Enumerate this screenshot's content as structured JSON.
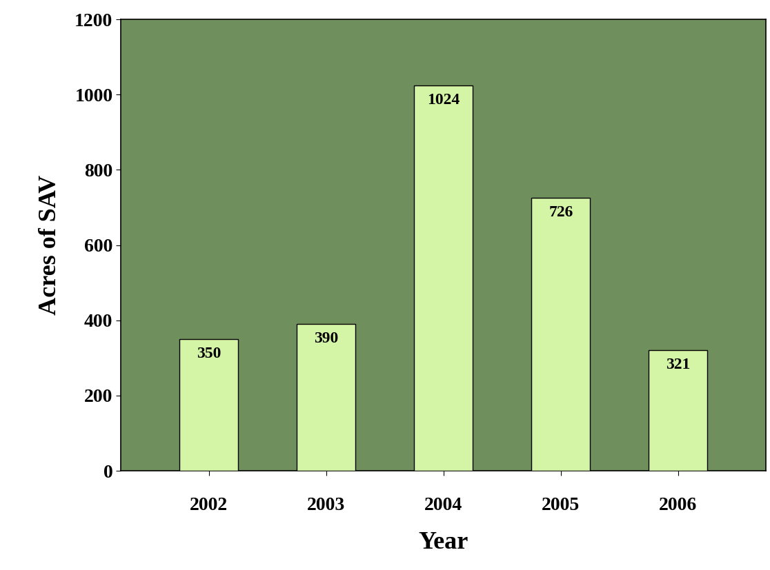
{
  "chart_data": {
    "type": "bar",
    "x_label": "Year",
    "y_label": "Acres of SAV",
    "categories": [
      "2002",
      "2003",
      "2004",
      "2005",
      "2006"
    ],
    "values": [
      350,
      390,
      1024,
      726,
      321
    ],
    "color": "#d4f5a6",
    "ylim": [
      0,
      1200
    ],
    "yticks": [
      0,
      200,
      400,
      600,
      800,
      1000,
      1200
    ],
    "grid": false,
    "data_labels": true
  }
}
